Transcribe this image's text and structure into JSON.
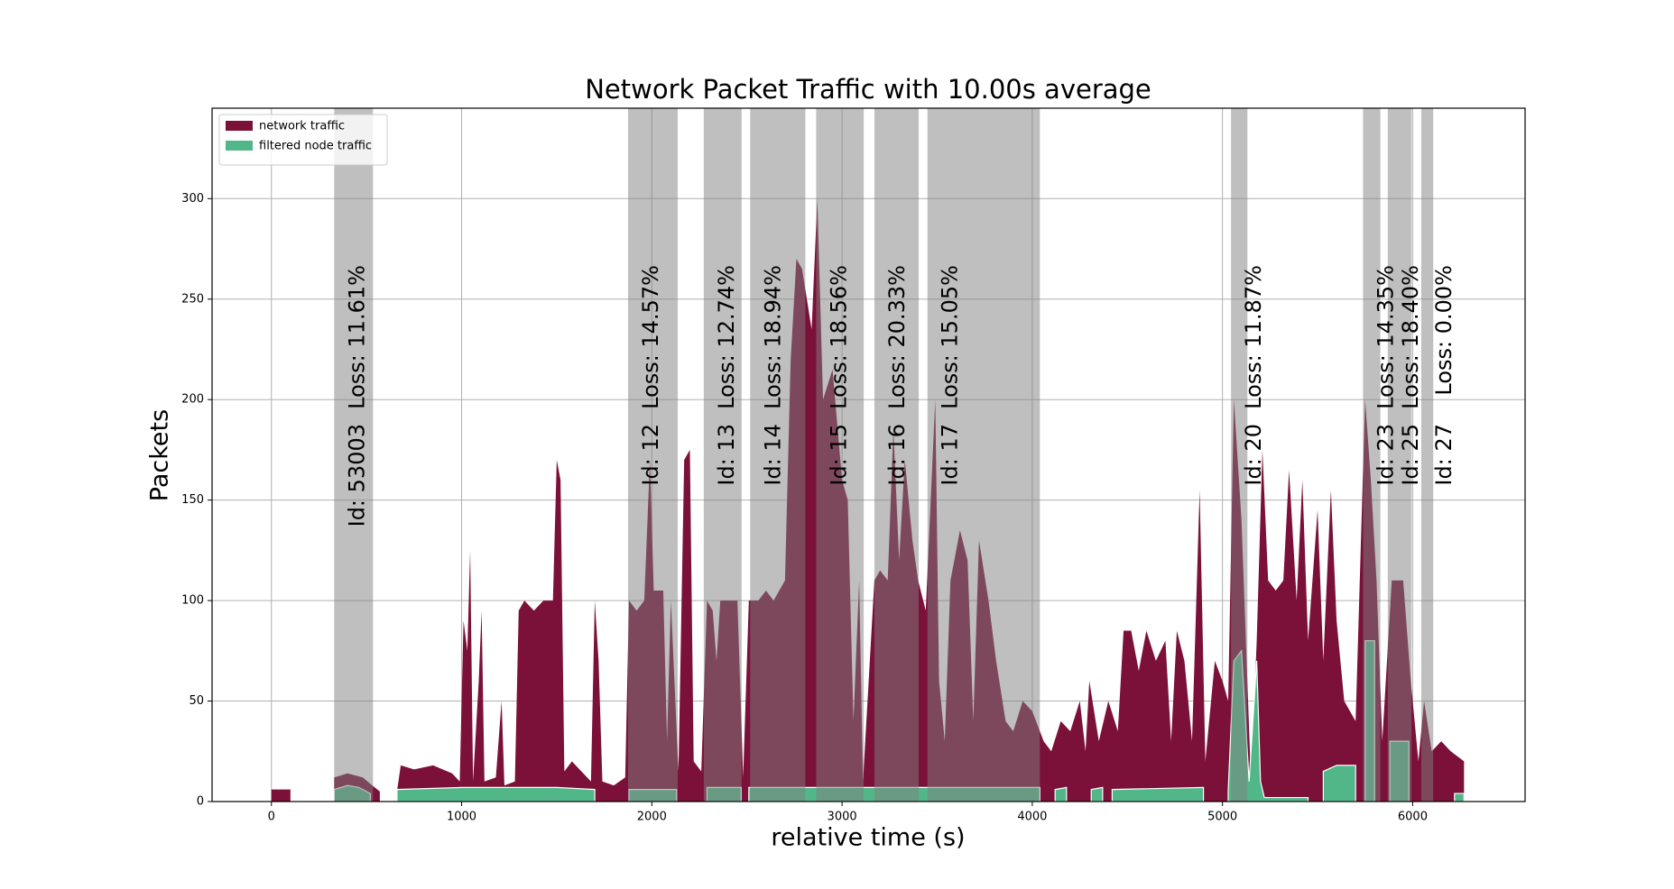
{
  "chart_data": {
    "type": "area",
    "title": "Network Packet Traffic with 10.00s average",
    "x_label": "relative time (s)",
    "y_label": "Packets",
    "xlim": [
      -312,
      6591
    ],
    "xticks": [
      0,
      1000,
      2000,
      3000,
      4000,
      5000,
      6000
    ],
    "ylim": [
      0,
      345
    ],
    "yticks": [
      0,
      50,
      100,
      150,
      200,
      250,
      300
    ],
    "grid": true,
    "legend": "upper left",
    "series": [
      {
        "name": "network traffic",
        "color": "#7b1038",
        "x": [
          0,
          100,
          110,
          330,
          400,
          480,
          530,
          570,
          610,
          660,
          680,
          750,
          850,
          950,
          990,
          1010,
          1030,
          1045,
          1060,
          1090,
          1105,
          1120,
          1180,
          1210,
          1225,
          1280,
          1300,
          1330,
          1380,
          1430,
          1480,
          1500,
          1520,
          1540,
          1580,
          1630,
          1680,
          1700,
          1720,
          1740,
          1800,
          1860,
          1880,
          1920,
          1960,
          1990,
          2010,
          2060,
          2080,
          2100,
          2140,
          2170,
          2200,
          2220,
          2260,
          2290,
          2320,
          2340,
          2360,
          2450,
          2480,
          2510,
          2560,
          2600,
          2640,
          2700,
          2730,
          2760,
          2790,
          2840,
          2870,
          2900,
          2950,
          3000,
          3030,
          3060,
          3090,
          3110,
          3170,
          3200,
          3240,
          3270,
          3300,
          3330,
          3370,
          3400,
          3440,
          3490,
          3510,
          3540,
          3570,
          3620,
          3660,
          3690,
          3720,
          3770,
          3810,
          3860,
          3900,
          3950,
          4000,
          4060,
          4100,
          4150,
          4200,
          4250,
          4280,
          4300,
          4350,
          4400,
          4450,
          4480,
          4520,
          4560,
          4600,
          4650,
          4700,
          4730,
          4760,
          4800,
          4840,
          4880,
          4910,
          4960,
          5000,
          5030,
          5060,
          5100,
          5150,
          5180,
          5210,
          5240,
          5280,
          5320,
          5350,
          5390,
          5420,
          5450,
          5500,
          5530,
          5570,
          5600,
          5640,
          5700,
          5750,
          5780,
          5810,
          5840,
          5890,
          5950,
          5990,
          6030,
          6060,
          6100,
          6150,
          6200,
          6270
        ],
        "values": [
          6,
          6,
          null,
          12,
          14,
          12,
          8,
          5,
          null,
          5,
          18,
          16,
          18,
          14,
          10,
          90,
          75,
          125,
          10,
          60,
          95,
          10,
          12,
          50,
          8,
          10,
          95,
          100,
          95,
          100,
          100,
          170,
          160,
          15,
          20,
          15,
          10,
          100,
          70,
          10,
          8,
          12,
          100,
          95,
          100,
          170,
          105,
          105,
          30,
          100,
          15,
          170,
          175,
          20,
          15,
          100,
          95,
          70,
          100,
          100,
          12,
          100,
          100,
          105,
          100,
          110,
          220,
          270,
          265,
          235,
          300,
          200,
          215,
          160,
          150,
          40,
          110,
          10,
          110,
          115,
          110,
          185,
          120,
          170,
          130,
          110,
          95,
          200,
          60,
          30,
          110,
          135,
          120,
          40,
          130,
          100,
          70,
          40,
          35,
          50,
          45,
          30,
          25,
          40,
          35,
          50,
          25,
          60,
          30,
          50,
          35,
          85,
          85,
          65,
          85,
          70,
          80,
          30,
          85,
          70,
          30,
          155,
          20,
          70,
          60,
          50,
          200,
          140,
          10,
          80,
          175,
          110,
          105,
          110,
          165,
          100,
          160,
          80,
          145,
          70,
          155,
          90,
          50,
          40,
          200,
          160,
          110,
          30,
          110,
          110,
          60,
          20,
          50,
          25,
          30,
          25,
          20
        ]
      },
      {
        "name": "filtered node traffic",
        "color": "#52b788",
        "x": [
          330,
          400,
          460,
          520,
          550,
          660,
          1000,
          1500,
          1700,
          1720,
          1880,
          2130,
          2140,
          2290,
          2470,
          2480,
          2510,
          2800,
          3100,
          3400,
          3700,
          4040,
          4060,
          4120,
          4180,
          4190,
          4310,
          4370,
          4380,
          4420,
          4900,
          4920,
          5030,
          5060,
          5100,
          5140,
          5180,
          5200,
          5220,
          5450,
          5460,
          5530,
          5600,
          5700,
          5720,
          5750,
          5800,
          5830,
          5880,
          5980,
          6000,
          6220,
          6270
        ],
        "values": [
          6,
          8,
          7,
          4,
          null,
          6,
          7,
          7,
          6,
          null,
          6,
          6,
          null,
          7,
          7,
          null,
          7,
          7,
          7,
          7,
          7,
          7,
          null,
          6,
          7,
          null,
          6,
          7,
          null,
          6,
          7,
          null,
          5,
          70,
          75,
          10,
          70,
          10,
          2,
          2,
          null,
          15,
          18,
          18,
          null,
          80,
          80,
          null,
          30,
          30,
          null,
          4,
          4
        ]
      }
    ],
    "spans": [
      {
        "x": [
          330,
          534
        ],
        "loss": "Loss: 11.61%",
        "id": "Id: 53003"
      },
      {
        "x": [
          1875,
          2136
        ],
        "loss": "Loss: 14.57%",
        "id": "Id: 12"
      },
      {
        "x": [
          2273,
          2472
        ],
        "loss": "Loss: 12.74%",
        "id": "Id: 13"
      },
      {
        "x": [
          2517,
          2807
        ],
        "loss": "Loss: 18.94%",
        "id": "Id: 14"
      },
      {
        "x": [
          2864,
          3114
        ],
        "loss": "Loss: 18.56%",
        "id": "Id: 15"
      },
      {
        "x": [
          3170,
          3403
        ],
        "loss": "Loss: 20.33%",
        "id": "Id: 16"
      },
      {
        "x": [
          3449,
          4040
        ],
        "loss": "Loss: 15.05%",
        "id": "Id: 17"
      },
      {
        "x": [
          5045,
          5131
        ],
        "loss": "Loss: 11.87%",
        "id": "Id: 20"
      },
      {
        "x": [
          5739,
          5830
        ],
        "loss": "Loss: 14.35%",
        "id": "Id: 23"
      },
      {
        "x": [
          5869,
          5994
        ],
        "loss": "Loss: 18.40%",
        "id": "Id: 25"
      },
      {
        "x": [
          6045,
          6108
        ],
        "loss": "Loss: 0.00%",
        "id": "Id: 27"
      }
    ]
  }
}
